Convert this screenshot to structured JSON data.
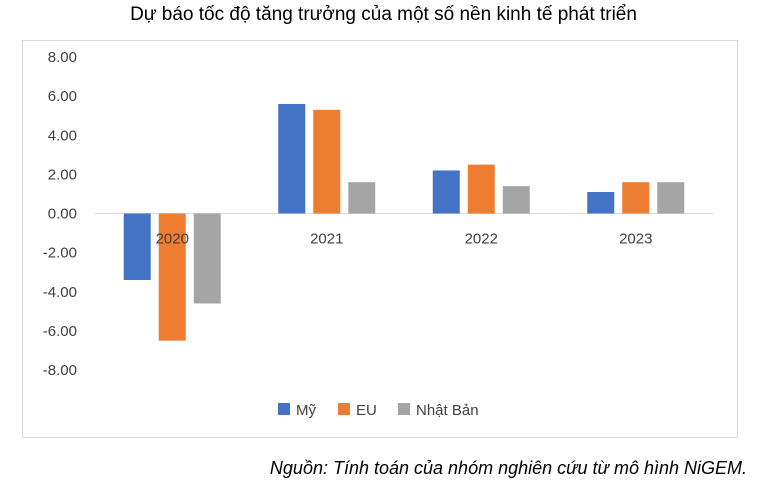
{
  "title": "Dự báo tốc độ tăng trưởng của một số nền kinh tế phát triển",
  "source": "Nguồn: Tính toán của nhóm nghiên cứu từ mô hình NiGEM.",
  "chart_data": {
    "type": "bar",
    "categories": [
      "2020",
      "2021",
      "2022",
      "2023"
    ],
    "series": [
      {
        "name": "Mỹ",
        "color": "#4472c4",
        "values": [
          -3.4,
          5.6,
          2.2,
          1.1
        ]
      },
      {
        "name": "EU",
        "color": "#ed7d31",
        "values": [
          -6.5,
          5.3,
          2.5,
          1.6
        ]
      },
      {
        "name": "Nhật Bản",
        "color": "#a5a5a5",
        "values": [
          -4.6,
          1.6,
          1.4,
          1.6
        ]
      }
    ],
    "yticks": [
      "8.00",
      "6.00",
      "4.00",
      "2.00",
      "0.00",
      "-2.00",
      "-4.00",
      "-6.00",
      "-8.00"
    ],
    "ylim": [
      -8,
      8
    ],
    "grid": false,
    "legend_position": "bottom"
  }
}
